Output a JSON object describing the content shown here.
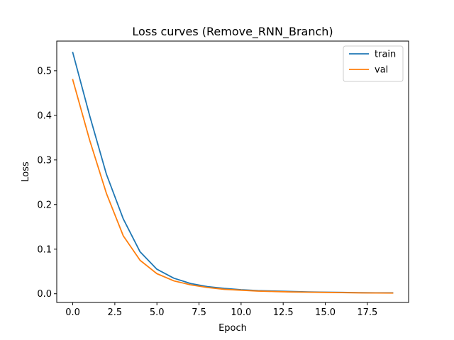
{
  "chart_data": {
    "type": "line",
    "title": "Loss curves (Remove_RNN_Branch)",
    "xlabel": "Epoch",
    "ylabel": "Loss",
    "xlim": [
      -0.95,
      19.95
    ],
    "ylim": [
      -0.0195,
      0.5665
    ],
    "xticks": [
      0.0,
      2.5,
      5.0,
      7.5,
      10.0,
      12.5,
      15.0,
      17.5
    ],
    "xtick_labels": [
      "0.0",
      "2.5",
      "5.0",
      "7.5",
      "10.0",
      "12.5",
      "15.0",
      "17.5"
    ],
    "yticks": [
      0.0,
      0.1,
      0.2,
      0.3,
      0.4,
      0.5
    ],
    "ytick_labels": [
      "0.0",
      "0.1",
      "0.2",
      "0.3",
      "0.4",
      "0.5"
    ],
    "grid": false,
    "legend_position": "top-right",
    "x": [
      0,
      1,
      2,
      3,
      4,
      5,
      6,
      7,
      8,
      9,
      10,
      11,
      12,
      13,
      14,
      15,
      16,
      17,
      18,
      19
    ],
    "series": [
      {
        "name": "train",
        "color": "#1f77b4",
        "values": [
          0.541,
          0.4,
          0.268,
          0.168,
          0.094,
          0.055,
          0.035,
          0.023,
          0.016,
          0.012,
          0.009,
          0.007,
          0.006,
          0.005,
          0.004,
          0.0035,
          0.003,
          0.0025,
          0.002,
          0.002
        ]
      },
      {
        "name": "val",
        "color": "#ff7f0e",
        "values": [
          0.48,
          0.345,
          0.225,
          0.13,
          0.075,
          0.045,
          0.029,
          0.02,
          0.014,
          0.01,
          0.008,
          0.006,
          0.005,
          0.004,
          0.0035,
          0.003,
          0.0025,
          0.002,
          0.0018,
          0.0015
        ]
      }
    ]
  }
}
